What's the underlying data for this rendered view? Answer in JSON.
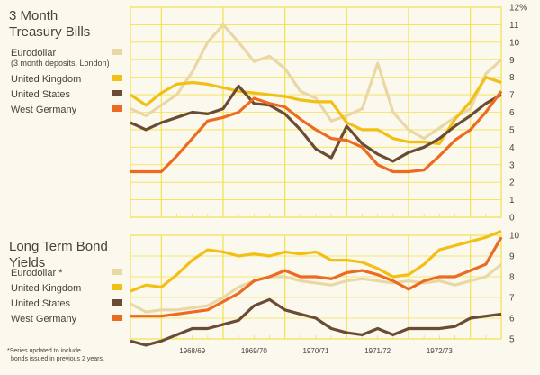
{
  "colors": {
    "background": "#fbf8ee",
    "grid": "#f3e24f",
    "eurodollar": "#ead7a6",
    "united_kingdom": "#f2bf14",
    "united_states": "#6a4b33",
    "west_germany": "#ec6a22"
  },
  "footnote": {
    "line1": "*Series updated to include",
    "line2": "bonds issued in previous 2 years."
  },
  "chart_data": [
    {
      "type": "line",
      "title": [
        "3 Month",
        "Treasury Bills"
      ],
      "ylim": [
        0,
        12
      ],
      "y_unit": "%",
      "y_ticks": [
        "0",
        "1",
        "2",
        "3",
        "4",
        "5",
        "6",
        "7",
        "8",
        "9",
        "10",
        "11",
        "12%"
      ],
      "x_tick_labels": [],
      "grid": true,
      "legend_placement": "top-left",
      "x": [
        1967.5,
        1967.75,
        1968.0,
        1968.25,
        1968.5,
        1968.75,
        1969.0,
        1969.25,
        1969.5,
        1969.75,
        1970.0,
        1970.25,
        1970.5,
        1970.75,
        1971.0,
        1971.25,
        1971.5,
        1971.75,
        1972.0,
        1972.25,
        1972.5,
        1972.75,
        1973.0,
        1973.25,
        1973.5
      ],
      "series": [
        {
          "name": "Eurodollar",
          "sub": "(3 month deposits, London)",
          "color_key": "eurodollar",
          "values": [
            6.2,
            5.8,
            6.4,
            7.0,
            8.3,
            10.0,
            11.0,
            10.0,
            8.9,
            9.2,
            8.5,
            7.2,
            6.8,
            5.5,
            5.8,
            6.2,
            8.8,
            6.0,
            5.0,
            4.5,
            5.1,
            5.7,
            6.2,
            8.2,
            9.0
          ]
        },
        {
          "name": "United Kingdom",
          "sub": "",
          "color_key": "united_kingdom",
          "values": [
            7.0,
            6.4,
            7.1,
            7.6,
            7.7,
            7.6,
            7.4,
            7.2,
            7.1,
            7.0,
            6.9,
            6.7,
            6.6,
            6.6,
            5.4,
            5.0,
            5.0,
            4.5,
            4.3,
            4.3,
            4.2,
            5.6,
            6.6,
            8.0,
            7.7
          ]
        },
        {
          "name": "United States",
          "sub": "",
          "color_key": "united_states",
          "values": [
            5.4,
            5.0,
            5.4,
            5.7,
            6.0,
            5.9,
            6.2,
            7.5,
            6.5,
            6.4,
            5.9,
            5.0,
            3.9,
            3.4,
            5.2,
            4.2,
            3.6,
            3.2,
            3.7,
            4.0,
            4.5,
            5.2,
            5.8,
            6.5,
            7.0
          ]
        },
        {
          "name": "West Germany",
          "sub": "",
          "color_key": "west_germany",
          "values": [
            2.6,
            2.6,
            2.6,
            3.5,
            4.5,
            5.5,
            5.7,
            6.0,
            6.8,
            6.5,
            6.3,
            5.6,
            5.0,
            4.5,
            4.4,
            4.0,
            3.0,
            2.6,
            2.6,
            2.7,
            3.5,
            4.4,
            5.0,
            6.0,
            7.2
          ]
        }
      ]
    },
    {
      "type": "line",
      "title": [
        "Long Term Bond",
        "Yields"
      ],
      "ylim": [
        5,
        10
      ],
      "y_ticks": [
        "5",
        "6",
        "7",
        "8",
        "9",
        "10"
      ],
      "x_tick_labels": [
        "1968/69",
        "1969/70",
        "1970/71",
        "1971/72",
        "1972/73"
      ],
      "grid": true,
      "legend_placement": "top-left",
      "x": [
        1967.5,
        1967.75,
        1968.0,
        1968.25,
        1968.5,
        1968.75,
        1969.0,
        1969.25,
        1969.5,
        1969.75,
        1970.0,
        1970.25,
        1970.5,
        1970.75,
        1971.0,
        1971.25,
        1971.5,
        1971.75,
        1972.0,
        1972.25,
        1972.5,
        1972.75,
        1973.0,
        1973.25,
        1973.5
      ],
      "series": [
        {
          "name": "Eurodollar *",
          "sub": "",
          "color_key": "eurodollar",
          "values": [
            6.7,
            6.3,
            6.4,
            6.4,
            6.5,
            6.6,
            7.0,
            7.5,
            7.8,
            8.0,
            8.0,
            7.8,
            7.7,
            7.6,
            7.8,
            7.9,
            7.8,
            7.7,
            7.8,
            7.7,
            7.8,
            7.6,
            7.8,
            8.0,
            8.6
          ]
        },
        {
          "name": "United Kingdom",
          "sub": "",
          "color_key": "united_kingdom",
          "values": [
            7.3,
            7.6,
            7.5,
            8.1,
            8.8,
            9.3,
            9.2,
            9.0,
            9.1,
            9.0,
            9.2,
            9.1,
            9.2,
            8.8,
            8.8,
            8.7,
            8.4,
            8.0,
            8.1,
            8.6,
            9.3,
            9.5,
            9.7,
            9.9,
            10.2
          ]
        },
        {
          "name": "United States",
          "sub": "",
          "color_key": "united_states",
          "values": [
            4.9,
            4.7,
            4.9,
            5.2,
            5.5,
            5.5,
            5.7,
            5.9,
            6.6,
            6.9,
            6.4,
            6.2,
            6.0,
            5.5,
            5.3,
            5.2,
            5.5,
            5.2,
            5.5,
            5.5,
            5.5,
            5.6,
            6.0,
            6.1,
            6.2
          ]
        },
        {
          "name": "West Germany",
          "sub": "",
          "color_key": "west_germany",
          "values": [
            6.1,
            6.1,
            6.1,
            6.2,
            6.3,
            6.4,
            6.8,
            7.2,
            7.8,
            8.0,
            8.3,
            8.0,
            8.0,
            7.9,
            8.2,
            8.3,
            8.1,
            7.8,
            7.4,
            7.8,
            8.0,
            8.0,
            8.3,
            8.6,
            9.9
          ]
        }
      ]
    }
  ]
}
